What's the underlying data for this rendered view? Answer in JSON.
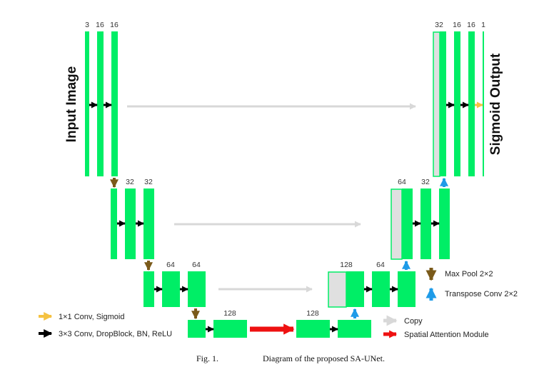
{
  "side_labels": {
    "input": "Input Image",
    "output": "Sigmoid Output"
  },
  "channel_labels": {
    "enc1": [
      "3",
      "16",
      "16"
    ],
    "enc2": [
      "32",
      "32"
    ],
    "enc3": [
      "64",
      "64"
    ],
    "bottleneck_in": "128",
    "bottleneck_out": "128",
    "dec3": [
      "128",
      "64"
    ],
    "dec2": [
      "64",
      "32"
    ],
    "dec1": [
      "32",
      "16",
      "16",
      "1"
    ]
  },
  "legend": {
    "conv1x1": "1×1 Conv, Sigmoid",
    "conv3x3": "3×3 Conv, DropBlock, BN, ReLU",
    "maxpool": "Max Pool 2×2",
    "transpose": "Transpose Conv 2×2",
    "copy": "Copy",
    "sam": "Spatial Attention Module"
  },
  "caption": {
    "fig": "Fig. 1.",
    "text": "Diagram of the proposed SA-UNet."
  },
  "colors": {
    "feature_map": "#00ee66",
    "copied_map": "#e0e0e0",
    "conv3x3_arrow": "#000000",
    "conv1x1_arrow": "#f5c242",
    "maxpool_arrow": "#7a5a1a",
    "transpose_arrow": "#1e9be8",
    "copy_arrow": "#d8d8d8",
    "sam_arrow": "#ee1111"
  }
}
